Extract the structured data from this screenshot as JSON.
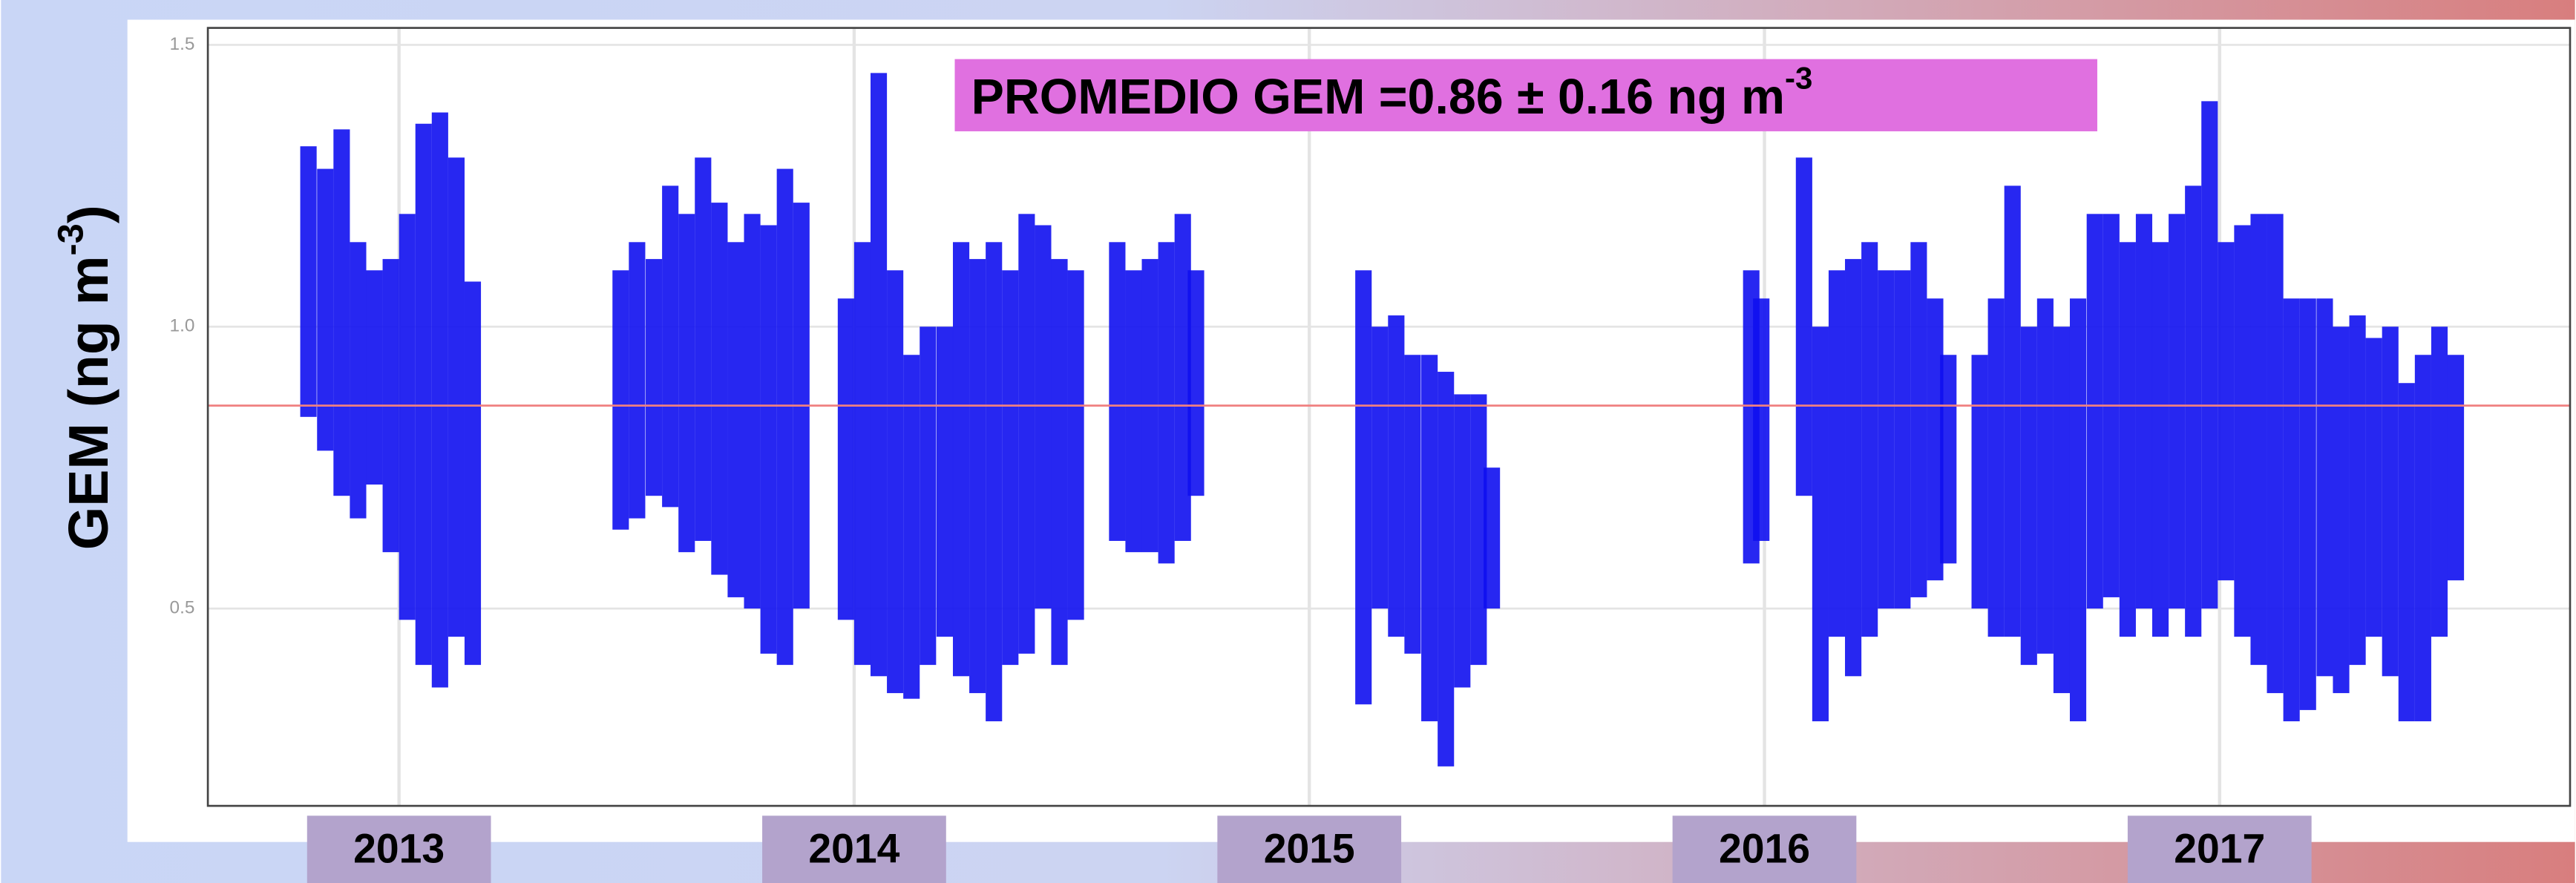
{
  "chart_data": {
    "type": "range",
    "y_label": {
      "text": "GEM (ng m",
      "superscript": "-3",
      "end": ")"
    },
    "annotation": {
      "text": "PROMEDIO GEM =0.86 ± 0.16 ng m",
      "superscript": "-3"
    },
    "mean_line": 0.86,
    "mean_color": "#f08080",
    "color": "#1010f0",
    "grid": true,
    "xlim": [
      2012.58,
      2017.77
    ],
    "xticks": [
      2013,
      2014,
      2015,
      2016,
      2017
    ],
    "ylim": [
      0.15,
      1.53
    ],
    "yticks": [
      {
        "value": 0.5,
        "label": "0.5"
      },
      {
        "value": 1,
        "label": "1.0"
      },
      {
        "value": 1.5,
        "label": "1.5"
      }
    ],
    "x": [
      2012.801,
      2012.838,
      2012.874,
      2012.91,
      2012.946,
      2012.982,
      2013.018,
      2013.054,
      2013.09,
      2013.126,
      2013.162,
      null,
      2013.487,
      2013.523,
      2013.56,
      2013.596,
      2013.632,
      2013.668,
      2013.704,
      2013.74,
      2013.776,
      2013.812,
      2013.848,
      2013.884,
      null,
      2013.982,
      2014.018,
      2014.054,
      2014.09,
      2014.126,
      2014.162,
      2014.199,
      2014.235,
      2014.271,
      2014.307,
      2014.343,
      2014.379,
      2014.415,
      2014.451,
      2014.487,
      null,
      2014.578,
      2014.614,
      2014.65,
      2014.686,
      2014.722,
      2014.751,
      null,
      2015.119,
      2015.155,
      2015.191,
      2015.227,
      2015.264,
      2015.3,
      2015.336,
      2015.372,
      2015.401,
      null,
      2015.971,
      2015.993,
      null,
      2016.087,
      2016.123,
      2016.159,
      2016.195,
      2016.231,
      2016.267,
      2016.303,
      2016.339,
      2016.375,
      2016.404,
      null,
      2016.473,
      2016.509,
      2016.545,
      2016.581,
      2016.617,
      2016.653,
      2016.689,
      2016.726,
      2016.762,
      2016.798,
      2016.834,
      2016.87,
      2016.906,
      2016.942,
      2016.978,
      2017.014,
      2017.05,
      2017.086,
      2017.122,
      2017.158,
      2017.194,
      2017.231,
      2017.267,
      2017.303,
      2017.339,
      2017.375,
      2017.411,
      2017.447,
      2017.483,
      2017.519
    ],
    "high": [
      1.32,
      1.28,
      1.35,
      1.15,
      1.1,
      1.12,
      1.2,
      1.36,
      1.38,
      1.3,
      1.08,
      null,
      1.1,
      1.15,
      1.12,
      1.25,
      1.2,
      1.3,
      1.22,
      1.15,
      1.2,
      1.18,
      1.28,
      1.22,
      null,
      1.05,
      1.15,
      1.45,
      1.1,
      0.95,
      1.0,
      1.0,
      1.15,
      1.12,
      1.15,
      1.1,
      1.2,
      1.18,
      1.12,
      1.1,
      null,
      1.15,
      1.1,
      1.12,
      1.15,
      1.2,
      1.1,
      null,
      1.1,
      1.0,
      1.02,
      0.95,
      0.95,
      0.92,
      0.88,
      0.88,
      0.75,
      null,
      1.1,
      1.05,
      null,
      1.3,
      1.0,
      1.1,
      1.12,
      1.15,
      1.1,
      1.1,
      1.15,
      1.05,
      0.95,
      null,
      0.95,
      1.05,
      1.25,
      1.0,
      1.05,
      1.0,
      1.05,
      1.2,
      1.2,
      1.15,
      1.2,
      1.15,
      1.2,
      1.25,
      1.4,
      1.15,
      1.18,
      1.2,
      1.2,
      1.05,
      1.05,
      1.05,
      1.0,
      1.02,
      0.98,
      1.0,
      0.9,
      0.95,
      1.0,
      0.95
    ],
    "low": [
      0.84,
      0.78,
      0.7,
      0.66,
      0.72,
      0.6,
      0.48,
      0.4,
      0.36,
      0.45,
      0.4,
      null,
      0.64,
      0.66,
      0.7,
      0.68,
      0.6,
      0.62,
      0.56,
      0.52,
      0.5,
      0.42,
      0.4,
      0.5,
      null,
      0.48,
      0.4,
      0.38,
      0.35,
      0.34,
      0.4,
      0.45,
      0.38,
      0.35,
      0.3,
      0.4,
      0.42,
      0.5,
      0.4,
      0.48,
      null,
      0.62,
      0.6,
      0.6,
      0.58,
      0.62,
      0.7,
      null,
      0.33,
      0.5,
      0.45,
      0.42,
      0.3,
      0.22,
      0.36,
      0.4,
      0.5,
      null,
      0.58,
      0.62,
      null,
      0.7,
      0.3,
      0.45,
      0.38,
      0.45,
      0.5,
      0.5,
      0.52,
      0.55,
      0.58,
      null,
      0.5,
      0.45,
      0.45,
      0.4,
      0.42,
      0.35,
      0.3,
      0.5,
      0.52,
      0.45,
      0.5,
      0.45,
      0.5,
      0.45,
      0.5,
      0.55,
      0.45,
      0.4,
      0.35,
      0.3,
      0.32,
      0.38,
      0.35,
      0.4,
      0.45,
      0.38,
      0.3,
      0.3,
      0.45,
      0.55
    ]
  }
}
